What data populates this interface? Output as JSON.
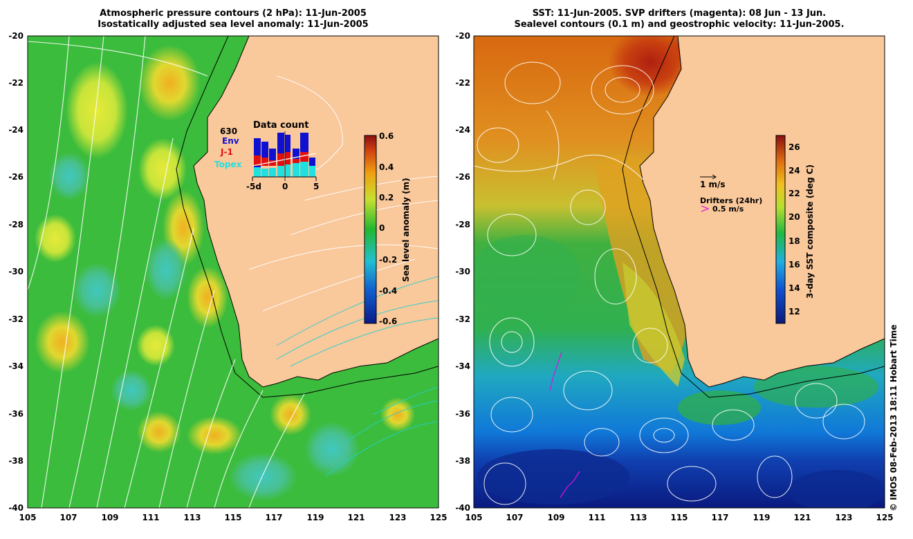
{
  "left_panel": {
    "title_line1": "Atmospheric pressure contours (2 hPa): 11-Jun-2005",
    "title_line2": "Isostatically adjusted sea level anomaly: 11-Jun-2005",
    "colorbar_label": "Sea level anomaly (m)",
    "colorbar_ticks": [
      "0.6",
      "0.4",
      "0.2",
      "0",
      "-0.2",
      "-0.4",
      "-0.6"
    ],
    "inset": {
      "title": "Data count",
      "count": "630",
      "legend_env": "Env",
      "legend_j1": "J-1",
      "legend_topex": "Topex",
      "x_ticks": [
        "-5d",
        "0",
        "5"
      ]
    }
  },
  "right_panel": {
    "title_line1": "SST: 11-Jun-2005. SVP drifters (magenta): 08 Jun - 13 Jun.",
    "title_line2": "Sealevel contours (0.1 m) and geostrophic velocity: 11-Jun-2005.",
    "colorbar_label": "3-day SST composite (deg C)",
    "colorbar_ticks": [
      "26",
      "24",
      "22",
      "20",
      "18",
      "16",
      "14",
      "12"
    ],
    "velocity_scale_label": "1 m/s",
    "drifter_label": "Drifters (24hr)",
    "drifter_scale_label": "0.5 m/s"
  },
  "axes": {
    "y_ticks": [
      "-20",
      "-22",
      "-24",
      "-26",
      "-28",
      "-30",
      "-32",
      "-34",
      "-36",
      "-38",
      "-40"
    ],
    "x_ticks": [
      "105",
      "107",
      "109",
      "111",
      "113",
      "115",
      "117",
      "119",
      "121",
      "123",
      "125"
    ]
  },
  "credit": "© IMOS 08-Feb-2013 18:11 Hobart Time",
  "colors": {
    "land": "#f9c89b",
    "ocean_green": "#3bc03b",
    "anomaly_yellow": "#d9e83a",
    "anomaly_cyan": "#46c9b0",
    "sst_warm": "#d96a10",
    "sst_cold": "#0c2a9a",
    "drifter": "#e010e0"
  }
}
